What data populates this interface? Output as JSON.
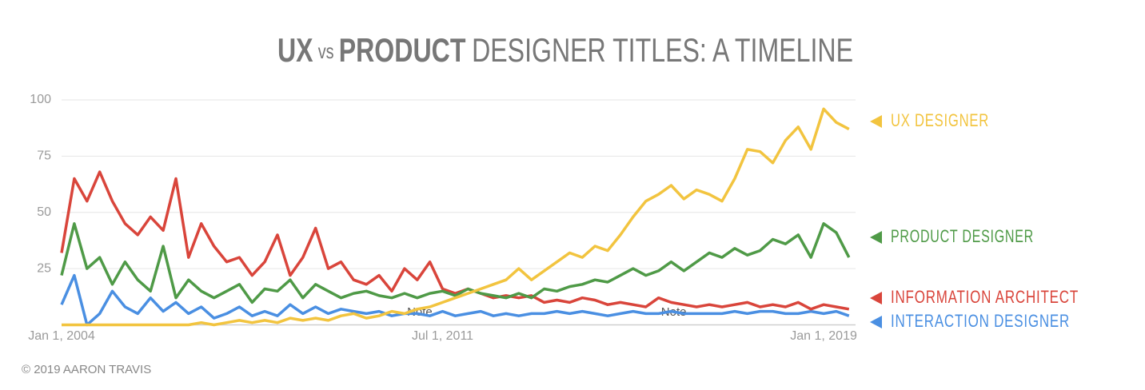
{
  "chart_data": {
    "type": "line",
    "title_parts": [
      "UX",
      "vs",
      "PRODUCT",
      "DESIGNER TITLES: A TIMELINE"
    ],
    "credit": "© 2019 AARON TRAVIS",
    "x": [
      2004,
      2004.25,
      2004.5,
      2004.75,
      2005,
      2005.25,
      2005.5,
      2005.75,
      2006,
      2006.25,
      2006.5,
      2006.75,
      2007,
      2007.25,
      2007.5,
      2007.75,
      2008,
      2008.25,
      2008.5,
      2008.75,
      2009,
      2009.25,
      2009.5,
      2009.75,
      2010,
      2010.25,
      2010.5,
      2010.75,
      2011,
      2011.25,
      2011.5,
      2011.75,
      2012,
      2012.25,
      2012.5,
      2012.75,
      2013,
      2013.25,
      2013.5,
      2013.75,
      2014,
      2014.25,
      2014.5,
      2014.75,
      2015,
      2015.25,
      2015.5,
      2015.75,
      2016,
      2016.25,
      2016.5,
      2016.75,
      2017,
      2017.25,
      2017.5,
      2017.75,
      2018,
      2018.25,
      2018.5,
      2018.75,
      2019,
      2019.25,
      2019.5
    ],
    "xlim": [
      2004,
      2019.55
    ],
    "xticks": [
      {
        "value": 2004,
        "label": "Jan 1, 2004"
      },
      {
        "value": 2011.5,
        "label": "Jul 1, 2011"
      },
      {
        "value": 2019,
        "label": "Jan 1, 2019"
      }
    ],
    "ylim": [
      0,
      100
    ],
    "yticks": [
      25,
      50,
      75,
      100
    ],
    "grid": true,
    "series": [
      {
        "name": "UX DESIGNER",
        "color": "#f2c43f",
        "values": [
          0,
          0,
          0,
          0,
          0,
          0,
          0,
          0,
          0,
          0,
          0,
          1,
          0,
          1,
          2,
          1,
          2,
          1,
          3,
          2,
          3,
          2,
          4,
          5,
          3,
          4,
          6,
          5,
          7,
          8,
          10,
          12,
          14,
          16,
          18,
          20,
          25,
          20,
          24,
          28,
          32,
          30,
          35,
          33,
          40,
          48,
          55,
          58,
          62,
          56,
          60,
          58,
          55,
          65,
          78,
          77,
          72,
          82,
          88,
          78,
          96,
          90,
          87
        ]
      },
      {
        "name": "PRODUCT DESIGNER",
        "color": "#4f9a47",
        "values": [
          22,
          45,
          25,
          30,
          18,
          28,
          20,
          15,
          35,
          12,
          20,
          15,
          12,
          15,
          18,
          10,
          16,
          15,
          20,
          12,
          18,
          15,
          12,
          14,
          15,
          13,
          12,
          14,
          12,
          14,
          15,
          13,
          16,
          14,
          13,
          12,
          14,
          12,
          16,
          15,
          17,
          18,
          20,
          19,
          22,
          25,
          22,
          24,
          28,
          24,
          28,
          32,
          30,
          34,
          31,
          33,
          38,
          36,
          40,
          30,
          45,
          41,
          30
        ]
      },
      {
        "name": "INFORMATION ARCHITECT",
        "color": "#d9453b",
        "values": [
          32,
          65,
          55,
          68,
          55,
          45,
          40,
          48,
          42,
          65,
          30,
          45,
          35,
          28,
          30,
          22,
          28,
          40,
          22,
          30,
          43,
          25,
          28,
          20,
          18,
          22,
          15,
          25,
          20,
          28,
          16,
          14,
          16,
          14,
          12,
          13,
          12,
          13,
          10,
          11,
          10,
          12,
          11,
          9,
          10,
          9,
          8,
          12,
          10,
          9,
          8,
          9,
          8,
          9,
          10,
          8,
          9,
          8,
          10,
          7,
          9,
          8,
          7
        ]
      },
      {
        "name": "INTERACTION DESIGNER",
        "color": "#4a8fe2",
        "values": [
          9,
          22,
          0,
          5,
          15,
          8,
          5,
          12,
          6,
          10,
          5,
          8,
          3,
          5,
          8,
          4,
          6,
          4,
          9,
          5,
          8,
          5,
          7,
          6,
          5,
          6,
          4,
          5,
          5,
          4,
          6,
          4,
          5,
          6,
          4,
          5,
          4,
          5,
          5,
          6,
          5,
          6,
          5,
          4,
          5,
          6,
          5,
          5,
          6,
          5,
          5,
          5,
          5,
          6,
          5,
          6,
          6,
          5,
          5,
          6,
          5,
          6,
          4
        ]
      }
    ],
    "annotations": [
      {
        "text": "Note",
        "x": 2011.05
      },
      {
        "text": "Note",
        "x": 2016.05
      }
    ]
  }
}
